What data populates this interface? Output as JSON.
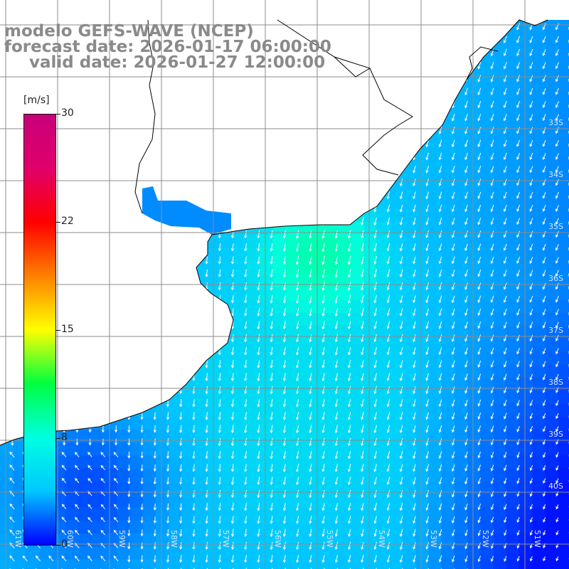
{
  "title": {
    "line1": "modelo GEFS-WAVE (NCEP)",
    "line2": "forecast date: 2026-01-17 06:00:00",
    "line3": "valid date: 2026-01-27 12:00:00"
  },
  "colorbar": {
    "unit": "[m/s]",
    "min": 0,
    "max": 30,
    "ticks": [
      "30",
      "22",
      "15",
      "8",
      "0"
    ],
    "colors": [
      "#0000ff",
      "#00c8ff",
      "#00ffe0",
      "#00ff40",
      "#ffff00",
      "#ff8000",
      "#ff0000",
      "#e0006a",
      "#c8007a"
    ]
  },
  "latitude_labels": [
    "33S",
    "34S",
    "35S",
    "36S",
    "37S",
    "38S",
    "39S",
    "40S"
  ],
  "longitude_labels": [
    "61W",
    "60W",
    "59W",
    "58W",
    "57W",
    "56W",
    "55W",
    "54W",
    "53W",
    "52W",
    "51W"
  ],
  "colors": {
    "land": "#ffffff",
    "grid": "#8c8c8c",
    "coast": "#000000",
    "arrow": "#ffffff"
  },
  "chart_data": {
    "type": "heatmap",
    "field": "wind speed with direction arrows",
    "lon_range": [
      "61W",
      "50W"
    ],
    "lat_range": [
      "32S",
      "41S"
    ],
    "value_range": [
      0,
      30
    ]
  }
}
